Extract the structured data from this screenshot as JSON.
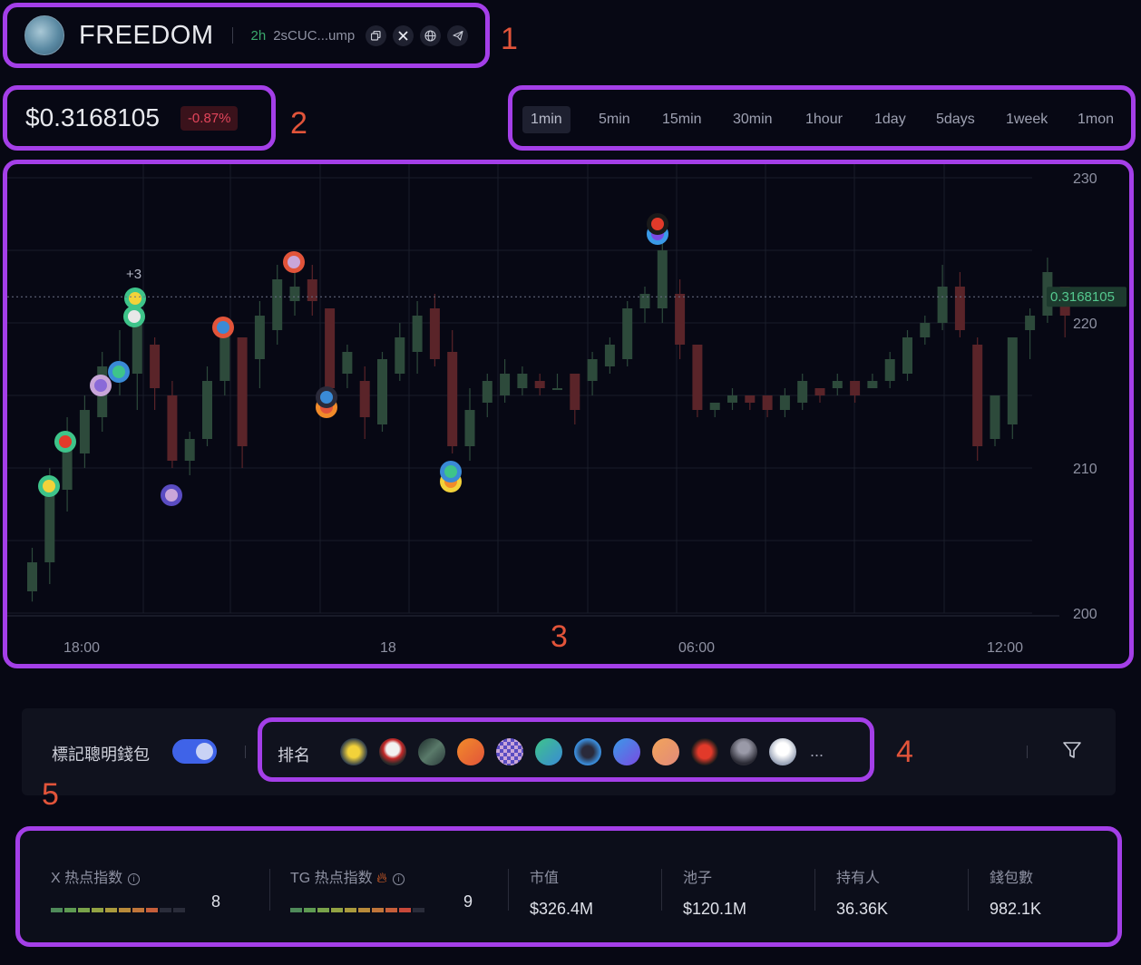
{
  "header": {
    "title": "FREEDOM",
    "age": "2h",
    "address": "2sCUC...ump",
    "icons": [
      "copy-icon",
      "x-icon",
      "globe-icon",
      "telegram-icon"
    ]
  },
  "price": {
    "value": "$0.3168105",
    "change": "-0.87%"
  },
  "intervals": [
    "1min",
    "5min",
    "15min",
    "30min",
    "1hour",
    "1day",
    "5days",
    "1week",
    "1mon"
  ],
  "active_interval": "1min",
  "chart_data": {
    "type": "candlestick",
    "x_tick_labels": [
      "18:00",
      "18",
      "06:00",
      "12:00"
    ],
    "y_ticks": [
      200,
      210,
      220,
      230
    ],
    "ylim": [
      200,
      230
    ],
    "current_price_label": "0.3168105",
    "current_price_level": 221.8,
    "annotation": "+3",
    "colors": {
      "up": "#2d4a3b",
      "down": "#5a2429",
      "grid": "#1a1d2a",
      "price_line": "#54c98f"
    },
    "candles": [
      [
        201.5,
        203.5,
        204.5,
        200.8
      ],
      [
        203.5,
        208.5,
        210.0,
        202.0
      ],
      [
        208.5,
        212.0,
        213.5,
        207.0
      ],
      [
        211.0,
        214.0,
        215.0,
        210.0
      ],
      [
        213.5,
        217.0,
        218.0,
        212.5
      ],
      [
        216.0,
        217.0,
        219.5,
        215.0
      ],
      [
        216.5,
        220.5,
        221.0,
        214.0
      ],
      [
        218.5,
        215.5,
        219.0,
        214.0
      ],
      [
        215.0,
        210.5,
        216.0,
        210.0
      ],
      [
        210.5,
        212.0,
        212.5,
        209.5
      ],
      [
        212.0,
        216.0,
        217.0,
        211.5
      ],
      [
        216.0,
        219.5,
        220.0,
        215.0
      ],
      [
        219.0,
        211.5,
        219.0,
        210.0
      ],
      [
        217.5,
        220.5,
        221.5,
        215.5
      ],
      [
        219.5,
        223.0,
        224.0,
        218.5
      ],
      [
        221.5,
        222.5,
        223.5,
        220.5
      ],
      [
        223.0,
        221.5,
        224.0,
        220.5
      ],
      [
        221.0,
        215.5,
        221.0,
        214.0
      ],
      [
        216.5,
        218.0,
        218.5,
        215.5
      ],
      [
        216.0,
        213.5,
        217.0,
        212.0
      ],
      [
        213.0,
        217.5,
        218.0,
        212.5
      ],
      [
        216.5,
        219.0,
        220.0,
        216.0
      ],
      [
        218.0,
        220.5,
        221.5,
        216.5
      ],
      [
        221.0,
        217.5,
        222.0,
        217.0
      ],
      [
        218.0,
        211.5,
        219.5,
        211.0
      ],
      [
        211.5,
        214.0,
        215.5,
        210.5
      ],
      [
        214.5,
        216.0,
        216.5,
        213.5
      ],
      [
        215.0,
        216.5,
        217.5,
        214.5
      ],
      [
        215.5,
        216.5,
        217.0,
        215.0
      ],
      [
        216.0,
        215.5,
        216.5,
        215.0
      ],
      [
        215.5,
        215.5,
        216.5,
        215.5
      ],
      [
        216.5,
        214.0,
        216.5,
        213.0
      ],
      [
        216.0,
        217.5,
        218.0,
        215.0
      ],
      [
        217.0,
        218.5,
        219.0,
        216.5
      ],
      [
        217.5,
        221.0,
        221.5,
        217.0
      ],
      [
        221.0,
        222.0,
        222.5,
        220.0
      ],
      [
        221.0,
        225.0,
        226.0,
        220.0
      ],
      [
        222.0,
        218.5,
        223.0,
        217.5
      ],
      [
        218.5,
        214.0,
        218.5,
        213.5
      ],
      [
        214.0,
        214.5,
        214.5,
        213.5
      ],
      [
        214.5,
        215.0,
        215.5,
        214.0
      ],
      [
        215.0,
        214.5,
        215.0,
        214.0
      ],
      [
        215.0,
        214.0,
        215.0,
        213.5
      ],
      [
        214.0,
        215.0,
        215.5,
        213.5
      ],
      [
        214.5,
        216.0,
        216.5,
        214.0
      ],
      [
        215.5,
        215.0,
        215.5,
        214.5
      ],
      [
        215.5,
        216.0,
        216.5,
        215.0
      ],
      [
        216.0,
        215.0,
        216.0,
        214.5
      ],
      [
        215.5,
        216.0,
        216.5,
        215.5
      ],
      [
        216.0,
        217.5,
        218.0,
        215.5
      ],
      [
        216.5,
        219.0,
        219.5,
        216.0
      ],
      [
        219.0,
        220.0,
        220.5,
        218.5
      ],
      [
        220.0,
        222.5,
        224.0,
        219.5
      ],
      [
        222.5,
        219.5,
        223.5,
        219.0
      ],
      [
        218.5,
        211.5,
        219.0,
        210.5
      ],
      [
        212.0,
        215.0,
        215.0,
        211.5
      ],
      [
        213.0,
        219.0,
        219.0,
        212.0
      ],
      [
        219.5,
        220.5,
        221.0,
        217.5
      ],
      [
        220.5,
        223.5,
        224.5,
        220.0
      ],
      [
        222.5,
        220.5,
        222.5,
        219.0
      ]
    ]
  },
  "toolbar": {
    "smart_wallet_label": "標記聰明錢包",
    "smart_wallet_on": true,
    "rank_label": "排名",
    "more": "..."
  },
  "stats": [
    {
      "label": "X 热点指数",
      "heat": 8
    },
    {
      "label": "TG 热点指数",
      "heat": 9
    },
    {
      "label": "市值",
      "value": "$326.4M"
    },
    {
      "label": "池子",
      "value": "$120.1M"
    },
    {
      "label": "持有人",
      "value": "36.36K"
    },
    {
      "label": "錢包數",
      "value": "982.1K"
    }
  ],
  "annotations": [
    "1",
    "2",
    "3",
    "4",
    "5"
  ]
}
